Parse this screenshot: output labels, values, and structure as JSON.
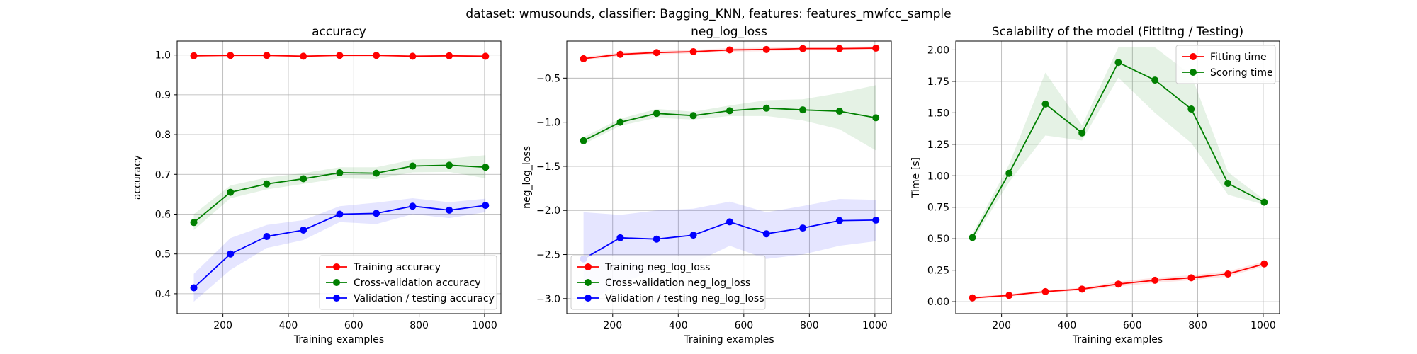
{
  "figure": {
    "suptitle": "dataset: wmusounds, classifier: Bagging_KNN, features: features_mwfcc_sample"
  },
  "chart_data": [
    {
      "type": "line",
      "title": "accuracy",
      "xlabel": "Training examples",
      "ylabel": "accuracy",
      "xlim": [
        60,
        1050
      ],
      "ylim": [
        0.35,
        1.035
      ],
      "xticks": [
        200,
        400,
        600,
        800,
        1000
      ],
      "yticks": [
        0.4,
        0.5,
        0.6,
        0.7,
        0.8,
        0.9,
        1.0
      ],
      "ytick_labels": [
        "0.4",
        "0.5",
        "0.6",
        "0.7",
        "0.8",
        "0.9",
        "1.0"
      ],
      "grid": true,
      "legend": "lower-right",
      "x": [
        111,
        223,
        334,
        446,
        557,
        669,
        780,
        892,
        1003
      ],
      "series": [
        {
          "name": "Training accuracy",
          "color": "#ff0000",
          "values": [
            0.998,
            0.999,
            0.999,
            0.997,
            0.999,
            0.999,
            0.997,
            0.998,
            0.997
          ],
          "band": [
            [
              0.996,
              1.0
            ],
            [
              0.998,
              1.0
            ],
            [
              0.997,
              1.0
            ],
            [
              0.995,
              0.999
            ],
            [
              0.998,
              1.0
            ],
            [
              0.998,
              1.0
            ],
            [
              0.995,
              0.999
            ],
            [
              0.997,
              0.999
            ],
            [
              0.995,
              0.999
            ]
          ]
        },
        {
          "name": "Cross-validation accuracy",
          "color": "#008000",
          "values": [
            0.579,
            0.655,
            0.676,
            0.689,
            0.704,
            0.703,
            0.721,
            0.723,
            0.718
          ],
          "band": [
            [
              0.56,
              0.6
            ],
            [
              0.64,
              0.672
            ],
            [
              0.662,
              0.692
            ],
            [
              0.676,
              0.703
            ],
            [
              0.69,
              0.718
            ],
            [
              0.688,
              0.718
            ],
            [
              0.705,
              0.737
            ],
            [
              0.706,
              0.74
            ],
            [
              0.69,
              0.748
            ]
          ]
        },
        {
          "name": "Validation / testing accuracy",
          "color": "#0000ff",
          "values": [
            0.415,
            0.5,
            0.544,
            0.56,
            0.6,
            0.602,
            0.62,
            0.61,
            0.622
          ],
          "band": [
            [
              0.38,
              0.45
            ],
            [
              0.46,
              0.54
            ],
            [
              0.515,
              0.573
            ],
            [
              0.535,
              0.585
            ],
            [
              0.58,
              0.62
            ],
            [
              0.575,
              0.629
            ],
            [
              0.6,
              0.64
            ],
            [
              0.59,
              0.63
            ],
            [
              0.605,
              0.639
            ]
          ]
        }
      ]
    },
    {
      "type": "line",
      "title": "neg_log_loss",
      "xlabel": "Training examples",
      "ylabel": "neg_log_loss",
      "xlim": [
        60,
        1050
      ],
      "ylim": [
        -3.17,
        -0.08
      ],
      "xticks": [
        200,
        400,
        600,
        800,
        1000
      ],
      "yticks": [
        -3.0,
        -2.5,
        -2.0,
        -1.5,
        -1.0,
        -0.5
      ],
      "ytick_labels": [
        "−3.0",
        "−2.5",
        "−2.0",
        "−1.5",
        "−1.0",
        "−0.5"
      ],
      "grid": true,
      "legend": "lower-left",
      "x": [
        111,
        223,
        334,
        446,
        557,
        669,
        780,
        892,
        1003
      ],
      "series": [
        {
          "name": "Training neg_log_loss",
          "color": "#ff0000",
          "values": [
            -0.28,
            -0.23,
            -0.21,
            -0.2,
            -0.18,
            -0.175,
            -0.165,
            -0.165,
            -0.16
          ],
          "band": [
            [
              -0.3,
              -0.26
            ],
            [
              -0.25,
              -0.21
            ],
            [
              -0.23,
              -0.19
            ],
            [
              -0.22,
              -0.18
            ],
            [
              -0.2,
              -0.16
            ],
            [
              -0.195,
              -0.155
            ],
            [
              -0.185,
              -0.145
            ],
            [
              -0.185,
              -0.145
            ],
            [
              -0.18,
              -0.14
            ]
          ]
        },
        {
          "name": "Cross-validation neg_log_loss",
          "color": "#008000",
          "values": [
            -1.21,
            -1.0,
            -0.9,
            -0.925,
            -0.87,
            -0.84,
            -0.86,
            -0.875,
            -0.95
          ],
          "band": [
            [
              -1.25,
              -1.17
            ],
            [
              -1.04,
              -0.96
            ],
            [
              -0.95,
              -0.85
            ],
            [
              -0.97,
              -0.88
            ],
            [
              -0.93,
              -0.81
            ],
            [
              -0.93,
              -0.75
            ],
            [
              -0.98,
              -0.74
            ],
            [
              -1.08,
              -0.67
            ],
            [
              -1.32,
              -0.58
            ]
          ]
        },
        {
          "name": "Validation / testing neg_log_loss",
          "color": "#0000ff",
          "values": [
            -2.55,
            -2.31,
            -2.325,
            -2.28,
            -2.13,
            -2.265,
            -2.2,
            -2.115,
            -2.11
          ],
          "band": [
            [
              -3.08,
              -2.02
            ],
            [
              -2.82,
              -2.05
            ],
            [
              -2.68,
              -2.0
            ],
            [
              -2.6,
              -1.98
            ],
            [
              -2.4,
              -1.9
            ],
            [
              -2.55,
              -2.02
            ],
            [
              -2.5,
              -1.95
            ],
            [
              -2.4,
              -1.87
            ],
            [
              -2.35,
              -1.88
            ]
          ]
        }
      ]
    },
    {
      "type": "line",
      "title": "Scalability of the model (Fittitng / Testing)",
      "xlabel": "Training examples",
      "ylabel": "Time [s]",
      "xlim": [
        60,
        1050
      ],
      "ylim": [
        -0.095,
        2.07
      ],
      "xticks": [
        200,
        400,
        600,
        800,
        1000
      ],
      "yticks": [
        0.0,
        0.25,
        0.5,
        0.75,
        1.0,
        1.25,
        1.5,
        1.75,
        2.0
      ],
      "ytick_labels": [
        "0.00",
        "0.25",
        "0.50",
        "0.75",
        "1.00",
        "1.25",
        "1.50",
        "1.75",
        "2.00"
      ],
      "grid": true,
      "legend": "upper-right",
      "x": [
        111,
        223,
        334,
        446,
        557,
        669,
        780,
        892,
        1003
      ],
      "series": [
        {
          "name": "Fitting time",
          "color": "#ff0000",
          "values": [
            0.03,
            0.05,
            0.08,
            0.1,
            0.14,
            0.17,
            0.19,
            0.22,
            0.3
          ],
          "band": [
            [
              0.02,
              0.04
            ],
            [
              0.04,
              0.06
            ],
            [
              0.07,
              0.09
            ],
            [
              0.09,
              0.11
            ],
            [
              0.12,
              0.16
            ],
            [
              0.15,
              0.19
            ],
            [
              0.17,
              0.21
            ],
            [
              0.2,
              0.24
            ],
            [
              0.28,
              0.32
            ]
          ]
        },
        {
          "name": "Scoring time",
          "color": "#008000",
          "values": [
            0.51,
            1.02,
            1.57,
            1.34,
            1.9,
            1.76,
            1.53,
            0.94,
            0.79
          ],
          "band": [
            [
              0.48,
              0.54
            ],
            [
              0.95,
              1.09
            ],
            [
              1.32,
              1.82
            ],
            [
              1.28,
              1.4
            ],
            [
              1.78,
              2.02
            ],
            [
              1.5,
              2.02
            ],
            [
              1.26,
              1.8
            ],
            [
              0.85,
              1.03
            ],
            [
              0.77,
              0.81
            ]
          ]
        }
      ]
    }
  ]
}
